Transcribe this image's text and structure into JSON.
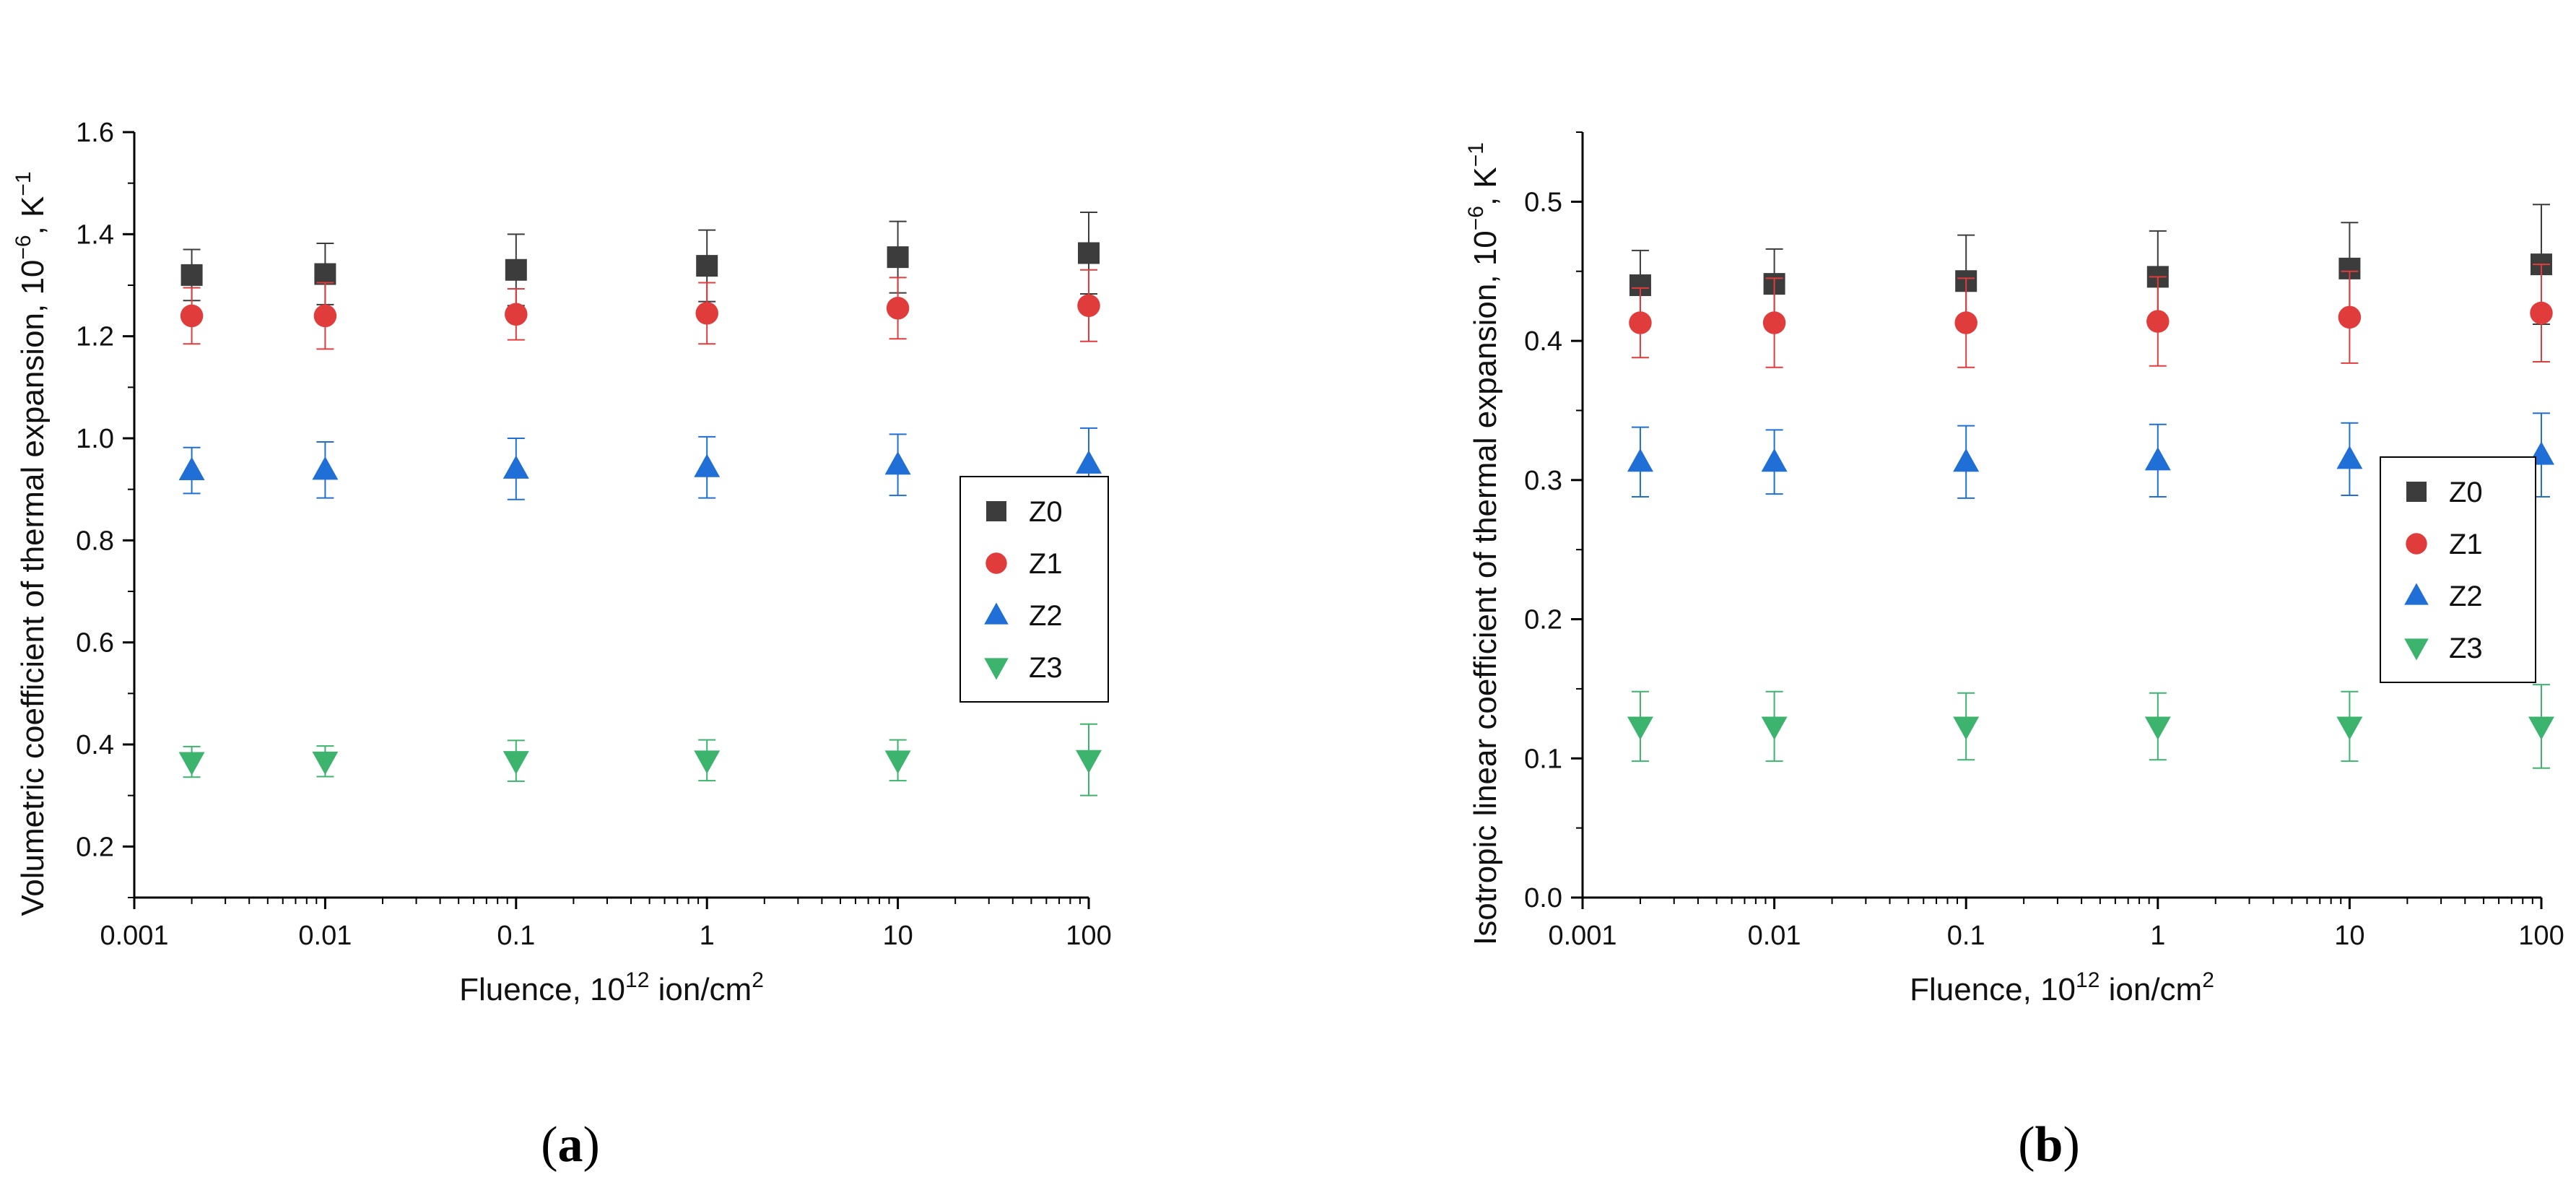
{
  "chart_data": [
    {
      "type": "scatter",
      "panel_label": "a",
      "xscale": "log",
      "xlim": [
        0.001,
        100
      ],
      "xticks": [
        0.001,
        0.01,
        0.1,
        1,
        10,
        100
      ],
      "xtick_labels": [
        "0.001",
        "0.01",
        "0.1",
        "1",
        "10",
        "100"
      ],
      "ylim": [
        0.1,
        1.6
      ],
      "yticks": [
        0.2,
        0.4,
        0.6,
        0.8,
        1.0,
        1.2,
        1.4,
        1.6
      ],
      "ytick_labels": [
        "0.2",
        "0.4",
        "0.6",
        "0.8",
        "1.0",
        "1.2",
        "1.4",
        "1.6"
      ],
      "xlabel": {
        "pre": "Fluence, 10",
        "sup": "12",
        "mid": " ion/cm",
        "sup2": "2"
      },
      "ylabel": {
        "pre": "Volumetric coefficient of thermal expansion, 10",
        "sup": "−6",
        "mid": ", K",
        "sup2": "−1"
      },
      "legend": {
        "placement": "right-middle",
        "entries": [
          "Z0",
          "Z1",
          "Z2",
          "Z3"
        ]
      },
      "x": [
        0.002,
        0.01,
        0.1,
        1,
        10,
        100
      ],
      "series": [
        {
          "name": "Z0",
          "marker": "square",
          "color": "#3c3c3c",
          "values": [
            1.32,
            1.322,
            1.33,
            1.338,
            1.355,
            1.363
          ],
          "err_low": [
            0.05,
            0.06,
            0.07,
            0.07,
            0.07,
            0.08
          ],
          "err_high": [
            0.05,
            0.06,
            0.07,
            0.07,
            0.07,
            0.08
          ]
        },
        {
          "name": "Z1",
          "marker": "circle",
          "color": "#e03c3c",
          "values": [
            1.24,
            1.24,
            1.243,
            1.245,
            1.255,
            1.26
          ],
          "err_low": [
            0.055,
            0.065,
            0.05,
            0.06,
            0.06,
            0.07
          ],
          "err_high": [
            0.055,
            0.065,
            0.05,
            0.06,
            0.06,
            0.07
          ]
        },
        {
          "name": "Z2",
          "marker": "triangle-up",
          "color": "#1f6fd6",
          "values": [
            0.937,
            0.938,
            0.94,
            0.943,
            0.948,
            0.95
          ],
          "err_low": [
            0.045,
            0.055,
            0.06,
            0.06,
            0.06,
            0.07
          ],
          "err_high": [
            0.045,
            0.055,
            0.06,
            0.06,
            0.06,
            0.07
          ]
        },
        {
          "name": "Z3",
          "marker": "triangle-down",
          "color": "#3cb46e",
          "values": [
            0.366,
            0.367,
            0.368,
            0.369,
            0.369,
            0.37
          ],
          "err_low": [
            0.03,
            0.03,
            0.04,
            0.04,
            0.04,
            0.07
          ],
          "err_high": [
            0.03,
            0.03,
            0.04,
            0.04,
            0.04,
            0.07
          ]
        }
      ]
    },
    {
      "type": "scatter",
      "panel_label": "b",
      "xscale": "log",
      "xlim": [
        0.001,
        100
      ],
      "xticks": [
        0.001,
        0.01,
        0.1,
        1,
        10,
        100
      ],
      "xtick_labels": [
        "0.001",
        "0.01",
        "0.1",
        "1",
        "10",
        "100"
      ],
      "ylim": [
        0.0,
        0.55
      ],
      "yticks": [
        0.0,
        0.1,
        0.2,
        0.3,
        0.4,
        0.5
      ],
      "ytick_labels": [
        "0.0",
        "0.1",
        "0.2",
        "0.3",
        "0.4",
        "0.5"
      ],
      "xlabel": {
        "pre": "Fluence, 10",
        "sup": "12",
        "mid": " ion/cm",
        "sup2": "2"
      },
      "ylabel": {
        "pre": "Isotropic linear coefficient of thermal expansion, 10",
        "sup": "−6",
        "mid": ", K",
        "sup2": "−1"
      },
      "legend": {
        "placement": "right-middle",
        "entries": [
          "Z0",
          "Z1",
          "Z2",
          "Z3"
        ]
      },
      "x": [
        0.002,
        0.01,
        0.1,
        1,
        10,
        100
      ],
      "series": [
        {
          "name": "Z0",
          "marker": "square",
          "color": "#3c3c3c",
          "values": [
            0.44,
            0.441,
            0.443,
            0.446,
            0.452,
            0.455
          ],
          "err_low": [
            0.025,
            0.025,
            0.033,
            0.033,
            0.033,
            0.043
          ],
          "err_high": [
            0.025,
            0.025,
            0.033,
            0.033,
            0.033,
            0.043
          ]
        },
        {
          "name": "Z1",
          "marker": "circle",
          "color": "#e03c3c",
          "values": [
            0.413,
            0.413,
            0.413,
            0.414,
            0.417,
            0.42
          ],
          "err_low": [
            0.025,
            0.032,
            0.032,
            0.032,
            0.033,
            0.035
          ],
          "err_high": [
            0.025,
            0.032,
            0.032,
            0.032,
            0.033,
            0.035
          ]
        },
        {
          "name": "Z2",
          "marker": "triangle-up",
          "color": "#1f6fd6",
          "values": [
            0.313,
            0.313,
            0.313,
            0.314,
            0.315,
            0.318
          ],
          "err_low": [
            0.025,
            0.023,
            0.026,
            0.026,
            0.026,
            0.03
          ],
          "err_high": [
            0.025,
            0.023,
            0.026,
            0.026,
            0.026,
            0.03
          ]
        },
        {
          "name": "Z3",
          "marker": "triangle-down",
          "color": "#3cb46e",
          "values": [
            0.123,
            0.123,
            0.123,
            0.123,
            0.123,
            0.123
          ],
          "err_low": [
            0.025,
            0.025,
            0.024,
            0.024,
            0.025,
            0.03
          ],
          "err_high": [
            0.025,
            0.025,
            0.024,
            0.024,
            0.025,
            0.03
          ]
        }
      ]
    }
  ]
}
